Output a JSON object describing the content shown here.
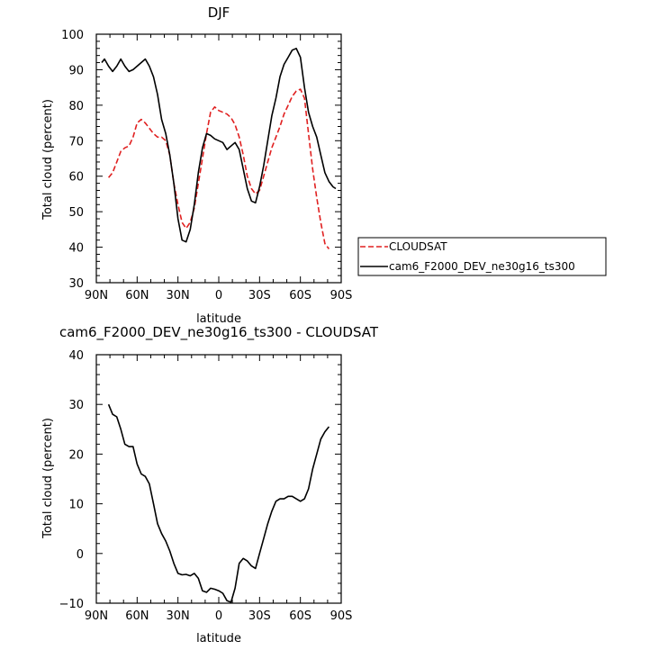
{
  "chart_data": [
    {
      "type": "line",
      "title": "DJF",
      "xlabel": "latitude",
      "ylabel": "Total cloud (percent)",
      "xlim": [
        -90,
        90
      ],
      "ylim": [
        30,
        100
      ],
      "x_ticks": [
        -90,
        -60,
        -30,
        0,
        30,
        60,
        90
      ],
      "x_tick_labels": [
        "90N",
        "60N",
        "30N",
        "0",
        "30S",
        "60S",
        "90S"
      ],
      "y_ticks": [
        30,
        40,
        50,
        60,
        70,
        80,
        90,
        100
      ],
      "y_tick_labels": [
        "30",
        "40",
        "50",
        "60",
        "70",
        "80",
        "90",
        "100"
      ],
      "legend_position": "right",
      "series": [
        {
          "name": "CLOUDSAT",
          "color": "#e02020",
          "dash": "dashed",
          "x": [
            -81,
            -78,
            -75,
            -72,
            -69,
            -66,
            -63,
            -60,
            -57,
            -54,
            -51,
            -48,
            -45,
            -42,
            -39,
            -36,
            -33,
            -30,
            -27,
            -24,
            -21,
            -18,
            -15,
            -12,
            -9,
            -6,
            -3,
            0,
            3,
            6,
            9,
            12,
            15,
            18,
            21,
            24,
            27,
            30,
            33,
            36,
            39,
            42,
            45,
            48,
            51,
            54,
            57,
            60,
            63,
            66,
            69,
            72,
            75,
            78,
            81
          ],
          "y": [
            59.6,
            61,
            64,
            67,
            68,
            68.5,
            71,
            75,
            76,
            75,
            73.5,
            72,
            71,
            71,
            70,
            66,
            58,
            52,
            47,
            45.3,
            47,
            51,
            58,
            65,
            72,
            78,
            79.5,
            78.5,
            78,
            77.5,
            76.5,
            74.5,
            71,
            66,
            60,
            56.5,
            55,
            56,
            60,
            64,
            68,
            71,
            74,
            77.5,
            80,
            82.5,
            84,
            84.5,
            82,
            72,
            62,
            54,
            47,
            41,
            39.5
          ]
        },
        {
          "name": "cam6_F2000_DEV_ne30g16_ts300",
          "color": "#000000",
          "dash": "solid",
          "x": [
            -86,
            -84,
            -81,
            -78,
            -75,
            -72,
            -69,
            -66,
            -63,
            -60,
            -57,
            -54,
            -51,
            -48,
            -45,
            -42,
            -39,
            -36,
            -33,
            -30,
            -27,
            -24,
            -21,
            -18,
            -15,
            -12,
            -9,
            -6,
            -3,
            0,
            3,
            6,
            9,
            12,
            15,
            18,
            21,
            24,
            27,
            30,
            33,
            36,
            39,
            42,
            45,
            48,
            51,
            54,
            57,
            60,
            63,
            66,
            69,
            72,
            75,
            78,
            81,
            84,
            86
          ],
          "y": [
            92,
            93,
            91,
            89.5,
            91,
            93,
            91,
            89.5,
            90,
            91,
            92,
            93,
            91,
            88,
            83,
            76,
            72,
            66,
            58,
            48,
            42,
            41.5,
            45,
            52,
            61,
            68,
            72,
            71.5,
            70.5,
            70,
            69.5,
            67.5,
            68.5,
            69.5,
            67.5,
            62,
            56.5,
            53,
            52.5,
            57,
            63,
            70,
            77,
            82,
            88,
            91.5,
            93.5,
            95.5,
            96,
            93.5,
            85,
            78,
            74,
            71,
            66,
            61,
            58.5,
            57,
            56.5
          ]
        }
      ]
    },
    {
      "type": "line",
      "title": "cam6_F2000_DEV_ne30g16_ts300 - CLOUDSAT",
      "xlabel": "latitude",
      "ylabel": "Total cloud (percent)",
      "xlim": [
        -90,
        90
      ],
      "ylim": [
        -10,
        40
      ],
      "x_ticks": [
        -90,
        -60,
        -30,
        0,
        30,
        60,
        90
      ],
      "x_tick_labels": [
        "90N",
        "60N",
        "30N",
        "0",
        "30S",
        "60S",
        "90S"
      ],
      "y_ticks": [
        -10,
        0,
        10,
        20,
        30,
        40
      ],
      "y_tick_labels": [
        "−10",
        "0",
        "10",
        "20",
        "30",
        "40"
      ],
      "series": [
        {
          "color": "#000000",
          "dash": "solid",
          "x": [
            -81,
            -78,
            -75,
            -72,
            -69,
            -66,
            -63,
            -60,
            -57,
            -54,
            -51,
            -48,
            -45,
            -42,
            -39,
            -36,
            -33,
            -30,
            -27,
            -24,
            -21,
            -18,
            -15,
            -12,
            -9,
            -6,
            -3,
            0,
            3,
            6,
            9,
            12,
            15,
            18,
            21,
            24,
            27,
            30,
            33,
            36,
            39,
            42,
            45,
            48,
            51,
            54,
            57,
            60,
            63,
            66,
            69,
            72,
            75,
            78,
            81
          ],
          "y": [
            30,
            28,
            27.5,
            25,
            22,
            21.5,
            21.5,
            18,
            16,
            15.5,
            14,
            10,
            6,
            4,
            2.5,
            0.5,
            -2,
            -4,
            -4.3,
            -4.2,
            -4.5,
            -4,
            -5,
            -7.5,
            -7.8,
            -7,
            -7.2,
            -7.5,
            -8,
            -9.5,
            -9.8,
            -7,
            -2,
            -1,
            -1.5,
            -2.5,
            -3,
            0,
            3,
            6,
            8.5,
            10.5,
            11,
            11,
            11.5,
            11.5,
            11,
            10.5,
            11,
            13,
            17,
            20,
            23,
            24.5,
            25.5
          ]
        }
      ]
    }
  ]
}
